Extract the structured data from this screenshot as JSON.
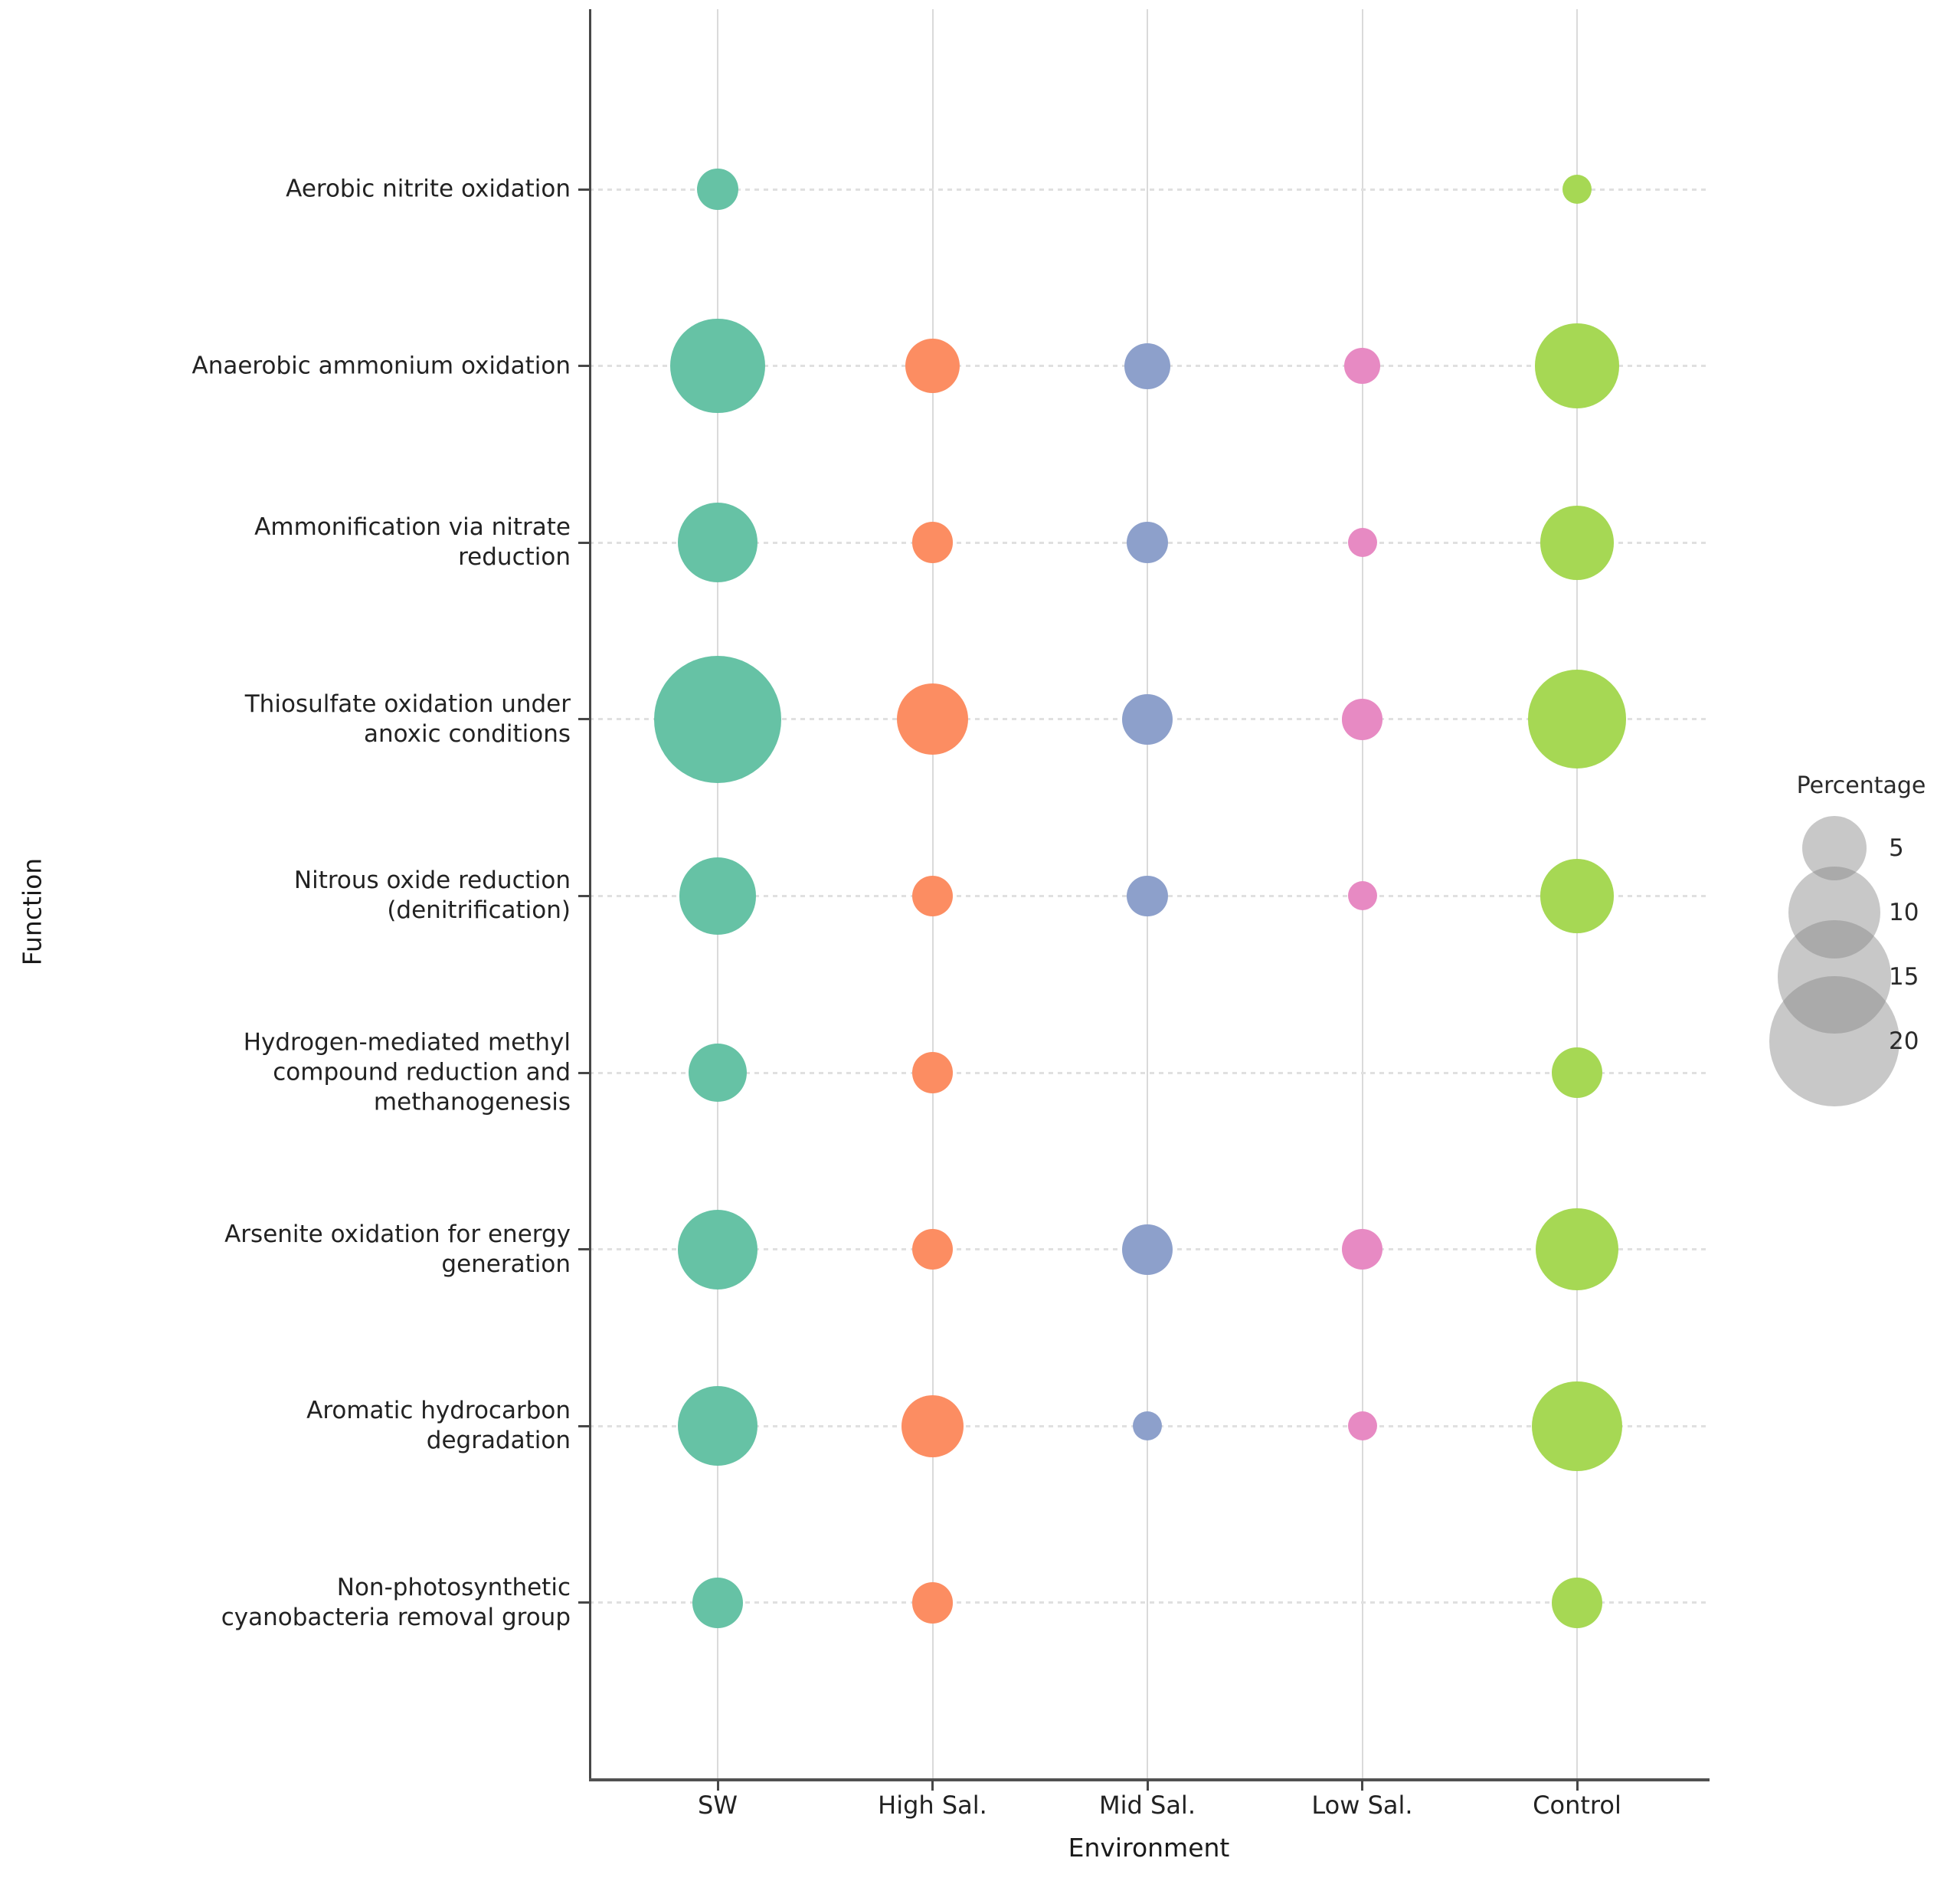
{
  "chart_data": {
    "type": "scatter",
    "subtype": "bubble",
    "title": "",
    "xlabel": "Environment",
    "ylabel": "Function",
    "x_categories": [
      "SW",
      "High Sal.",
      "Mid Sal.",
      "Low Sal.",
      "Control"
    ],
    "y_categories": [
      "Aerobic nitrite oxidation",
      "Anaerobic ammonium oxidation",
      "Ammonification via nitrate reduction",
      "Thiosulfate oxidation under anoxic conditions",
      "Nitrous oxide reduction (denitrification)",
      "Hydrogen-mediated methyl compound reduction and methanogenesis",
      "Arsenite oxidation for energy generation",
      "Aromatic hydrocarbon degradation",
      "Non-photosynthetic cyanobacteria removal group"
    ],
    "y_tick_lines": [
      "Aerobic nitrite oxidation",
      "Anaerobic ammonium oxidation",
      "Ammonification via nitrate\nreduction",
      "Thiosulfate oxidation under\nanoxic conditions",
      "Nitrous oxide reduction\n(denitrification)",
      "Hydrogen-mediated methyl\ncompound reduction and\nmethanogenesis",
      "Arsenite oxidation for energy\ngeneration",
      "Aromatic hydrocarbon\ndegradation",
      "Non-photosynthetic\ncyanobacteria removal group"
    ],
    "series": [
      {
        "name": "SW",
        "color": "#66c2a5",
        "values": [
          2,
          10.5,
          7.5,
          19,
          7,
          4,
          7.5,
          7.5,
          3
        ]
      },
      {
        "name": "High Sal.",
        "color": "#fc8d62",
        "values": [
          null,
          3.5,
          2,
          6,
          2,
          2,
          2,
          4.5,
          2
        ]
      },
      {
        "name": "Mid Sal.",
        "color": "#8da0cb",
        "values": [
          null,
          2.5,
          2,
          3,
          2,
          null,
          3,
          1,
          null
        ]
      },
      {
        "name": "Low Sal.",
        "color": "#e78ac3",
        "values": [
          null,
          1.5,
          1,
          2,
          1,
          null,
          2,
          1,
          null
        ]
      },
      {
        "name": "Control",
        "color": "#a6d854",
        "values": [
          1,
          8.5,
          6.5,
          11.5,
          6.5,
          3,
          8,
          9.5,
          3
        ]
      }
    ],
    "size_legend": {
      "title": "Percentage",
      "values": [
        5,
        10,
        15,
        20
      ]
    },
    "size_encoding": "bubble diameter proportional to sqrt(percentage)",
    "grid": true,
    "legend_position": "right"
  }
}
